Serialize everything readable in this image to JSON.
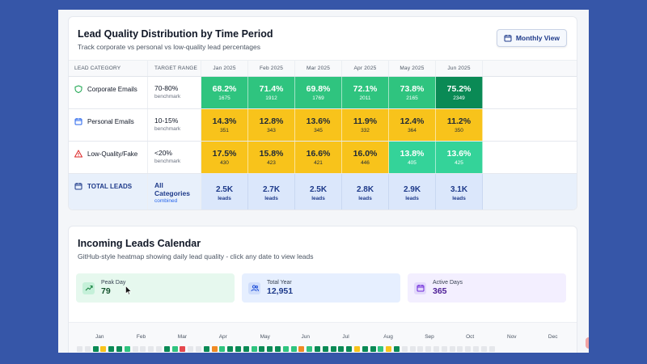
{
  "distribution": {
    "title": "Lead Quality Distribution by Time Period",
    "subtitle": "Track corporate vs personal vs low-quality lead percentages",
    "view_button": "Monthly View",
    "headers": {
      "category": "LEAD CATEGORY",
      "range": "TARGET RANGE",
      "months": [
        "Jan 2025",
        "Feb 2025",
        "Mar 2025",
        "Apr 2025",
        "May 2025",
        "Jun 2025"
      ]
    },
    "rows": [
      {
        "label": "Corporate Emails",
        "icon": "shield-icon",
        "icon_color": "#16a34a",
        "range": "70-80%",
        "range_sub": "benchmark",
        "cells": [
          {
            "pct": "68.2%",
            "count": "1675",
            "tone": "g1"
          },
          {
            "pct": "71.4%",
            "count": "1912",
            "tone": "g1"
          },
          {
            "pct": "69.8%",
            "count": "1769",
            "tone": "g1"
          },
          {
            "pct": "72.1%",
            "count": "2011",
            "tone": "g1"
          },
          {
            "pct": "73.8%",
            "count": "2165",
            "tone": "g1"
          },
          {
            "pct": "75.2%",
            "count": "2349",
            "tone": "g2"
          }
        ]
      },
      {
        "label": "Personal Emails",
        "icon": "calendar-icon",
        "icon_color": "#2563eb",
        "range": "10-15%",
        "range_sub": "benchmark",
        "cells": [
          {
            "pct": "14.3%",
            "count": "351",
            "tone": "y1"
          },
          {
            "pct": "12.8%",
            "count": "343",
            "tone": "y1"
          },
          {
            "pct": "13.6%",
            "count": "345",
            "tone": "y1"
          },
          {
            "pct": "11.9%",
            "count": "332",
            "tone": "y1"
          },
          {
            "pct": "12.4%",
            "count": "364",
            "tone": "y1"
          },
          {
            "pct": "11.2%",
            "count": "350",
            "tone": "y1"
          }
        ]
      },
      {
        "label": "Low-Quality/Fake",
        "icon": "warning-icon",
        "icon_color": "#dc2626",
        "range": "<20%",
        "range_sub": "benchmark",
        "cells": [
          {
            "pct": "17.5%",
            "count": "430",
            "tone": "y1"
          },
          {
            "pct": "15.8%",
            "count": "423",
            "tone": "y1"
          },
          {
            "pct": "16.6%",
            "count": "421",
            "tone": "y1"
          },
          {
            "pct": "16.0%",
            "count": "446",
            "tone": "y1"
          },
          {
            "pct": "13.8%",
            "count": "405",
            "tone": "g3"
          },
          {
            "pct": "13.6%",
            "count": "425",
            "tone": "g3"
          }
        ]
      }
    ],
    "total": {
      "label": "TOTAL LEADS",
      "icon": "calendar-icon",
      "range_line1": "All",
      "range_line2": "Categories",
      "range_sub": "combined",
      "cells": [
        {
          "value": "2.5K",
          "unit": "leads"
        },
        {
          "value": "2.7K",
          "unit": "leads"
        },
        {
          "value": "2.5K",
          "unit": "leads"
        },
        {
          "value": "2.8K",
          "unit": "leads"
        },
        {
          "value": "2.9K",
          "unit": "leads"
        },
        {
          "value": "3.1K",
          "unit": "leads"
        }
      ]
    }
  },
  "calendar": {
    "title": "Incoming Leads Calendar",
    "subtitle": "GitHub-style heatmap showing daily lead quality - click any date to view leads",
    "stats": [
      {
        "label": "Peak Day",
        "value": "79",
        "icon": "trending-up-icon",
        "tone": "s-green"
      },
      {
        "label": "Total Year",
        "value": "12,951",
        "icon": "users-icon",
        "tone": "s-blue"
      },
      {
        "label": "Active Days",
        "value": "365",
        "icon": "calendar-icon",
        "tone": "s-purple"
      }
    ],
    "months": [
      "Jan",
      "Feb",
      "Mar",
      "Apr",
      "May",
      "Jun",
      "Jul",
      "Aug",
      "Sep",
      "Oct",
      "Nov",
      "Dec"
    ],
    "colors": {
      "high": "#0a8a55",
      "mid": "#2fc47f",
      "yellow": "#f8c31b",
      "orange": "#f08a24",
      "red": "#e5484d",
      "empty": "#e5e7eb"
    }
  }
}
